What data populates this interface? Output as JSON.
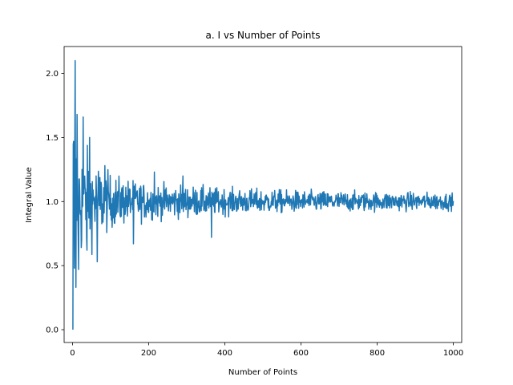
{
  "chart_data": {
    "type": "line",
    "title": "a. I vs Number of Points",
    "xlabel": "Number of Points",
    "ylabel": "Integral Value",
    "xlim": [
      -22,
      1022
    ],
    "ylim": [
      -0.1,
      2.21
    ],
    "xticks": [
      0,
      200,
      400,
      600,
      800,
      1000
    ],
    "yticks": [
      0.0,
      0.5,
      1.0,
      1.5,
      2.0
    ],
    "xtick_labels": [
      "0",
      "200",
      "400",
      "600",
      "800",
      "1000"
    ],
    "ytick_labels": [
      "0.0",
      "0.5",
      "1.0",
      "1.5",
      "2.0"
    ],
    "grid": false,
    "series": [
      {
        "color": "#1f77b4",
        "x_start": 1,
        "x_end": 1000,
        "envelope": {
          "x": [
            1,
            5,
            10,
            20,
            40,
            60,
            80,
            100,
            150,
            200,
            300,
            400,
            600,
            800,
            1000
          ],
          "amplitude": [
            1.0,
            0.9,
            0.6,
            0.5,
            0.42,
            0.34,
            0.28,
            0.22,
            0.18,
            0.15,
            0.13,
            0.11,
            0.09,
            0.08,
            0.07
          ]
        },
        "key_points": [
          {
            "x": 1,
            "y": 0.0
          },
          {
            "x": 3,
            "y": 1.47
          },
          {
            "x": 5,
            "y": 0.48
          },
          {
            "x": 7,
            "y": 2.1
          },
          {
            "x": 9,
            "y": 0.33
          },
          {
            "x": 12,
            "y": 1.68
          },
          {
            "x": 16,
            "y": 0.47
          },
          {
            "x": 28,
            "y": 1.66
          },
          {
            "x": 38,
            "y": 0.62
          },
          {
            "x": 45,
            "y": 1.5
          },
          {
            "x": 65,
            "y": 0.53
          },
          {
            "x": 85,
            "y": 1.28
          },
          {
            "x": 160,
            "y": 0.67
          },
          {
            "x": 215,
            "y": 1.23
          },
          {
            "x": 290,
            "y": 1.2
          },
          {
            "x": 365,
            "y": 0.72
          }
        ]
      }
    ]
  }
}
